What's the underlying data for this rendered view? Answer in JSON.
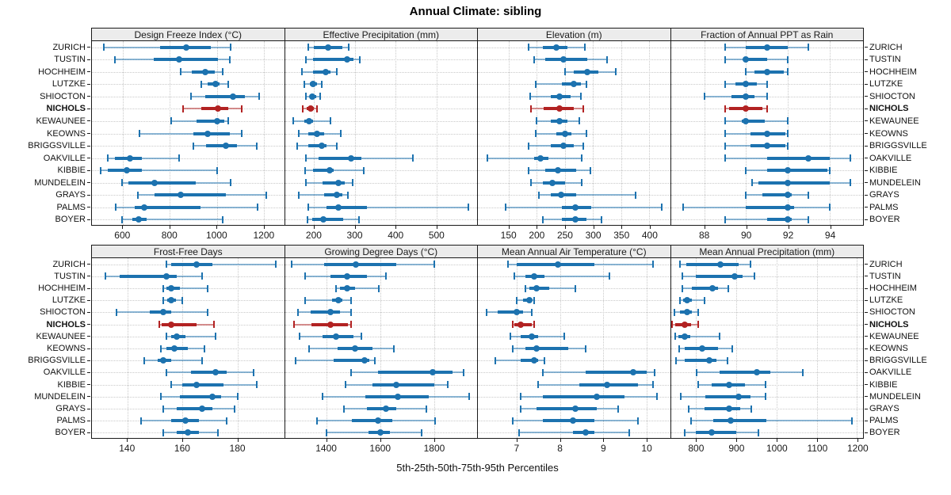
{
  "title": "Annual Climate: sibling",
  "footer": "5th-25th-50th-75th-95th Percentiles",
  "stations": [
    "ZURICH",
    "TUSTIN",
    "HOCHHEIM",
    "LUTZKE",
    "SHIOCTON",
    "NICHOLS",
    "KEWAUNEE",
    "KEOWNS",
    "BRIGGSVILLE",
    "OAKVILLE",
    "KIBBIE",
    "MUNDELEIN",
    "GRAYS",
    "PALMS",
    "BOYER"
  ],
  "highlight_station": "NICHOLS",
  "colors": {
    "normal": "#1c72af",
    "highlight": "#b22222",
    "grid": "#c9c9c9",
    "frame": "#1a1a1a",
    "strip_bg": "#ececec"
  },
  "chart_data": {
    "type": "dotplot-trellis",
    "percentile_levels": [
      5,
      25,
      50,
      75,
      95
    ],
    "note": "values are [p5,p25,p50,p75,p95] per station, station order as in stations[]",
    "panels": [
      {
        "row": 0,
        "title": "Design Freeze Index (°C)",
        "xlim": [
          468,
          1287
        ],
        "ticks": [
          600,
          800,
          1000,
          1200
        ],
        "values": [
          [
            520,
            760,
            870,
            975,
            1060
          ],
          [
            565,
            730,
            840,
            1005,
            1055
          ],
          [
            845,
            895,
            950,
            990,
            1025
          ],
          [
            935,
            960,
            995,
            1012,
            1048
          ],
          [
            890,
            950,
            1070,
            1120,
            1180
          ],
          [
            855,
            935,
            1005,
            1050,
            1105
          ],
          [
            805,
            915,
            1000,
            1032,
            1048
          ],
          [
            670,
            900,
            960,
            1055,
            1105
          ],
          [
            900,
            955,
            1040,
            1085,
            1170
          ],
          [
            535,
            565,
            630,
            680,
            840
          ],
          [
            505,
            535,
            615,
            680,
            1000
          ],
          [
            595,
            625,
            735,
            910,
            1060
          ],
          [
            665,
            735,
            845,
            1040,
            1210
          ],
          [
            570,
            650,
            690,
            930,
            1175
          ],
          [
            595,
            640,
            668,
            700,
            1025
          ]
        ]
      },
      {
        "row": 0,
        "title": "Effective Precipitation (mm)",
        "xlim": [
          128,
          600
        ],
        "ticks": [
          200,
          300,
          400,
          500
        ],
        "values": [
          [
            185,
            200,
            235,
            270,
            285
          ],
          [
            180,
            198,
            280,
            297,
            312
          ],
          [
            170,
            198,
            228,
            240,
            256
          ],
          [
            175,
            190,
            197,
            207,
            218
          ],
          [
            180,
            190,
            196,
            205,
            215
          ],
          [
            172,
            182,
            192,
            200,
            207
          ],
          [
            148,
            175,
            188,
            197,
            240
          ],
          [
            162,
            185,
            207,
            225,
            265
          ],
          [
            158,
            185,
            218,
            230,
            255
          ],
          [
            180,
            210,
            290,
            315,
            443
          ],
          [
            178,
            197,
            237,
            247,
            322
          ],
          [
            180,
            220,
            260,
            275,
            295
          ],
          [
            162,
            225,
            255,
            270,
            283
          ],
          [
            185,
            230,
            260,
            330,
            578
          ],
          [
            183,
            196,
            222,
            272,
            310
          ]
        ]
      },
      {
        "row": 0,
        "title": "Elevation (m)",
        "xlim": [
          95,
          437
        ],
        "ticks": [
          150,
          200,
          250,
          300,
          350,
          400
        ],
        "values": [
          [
            185,
            210,
            235,
            255,
            285
          ],
          [
            195,
            215,
            248,
            290,
            325
          ],
          [
            250,
            265,
            290,
            310,
            340
          ],
          [
            198,
            245,
            265,
            278,
            288
          ],
          [
            188,
            225,
            240,
            260,
            278
          ],
          [
            190,
            212,
            240,
            265,
            282
          ],
          [
            200,
            225,
            240,
            255,
            275
          ],
          [
            198,
            235,
            250,
            262,
            288
          ],
          [
            185,
            225,
            248,
            265,
            283
          ],
          [
            112,
            195,
            207,
            220,
            280
          ],
          [
            185,
            215,
            237,
            270,
            295
          ],
          [
            190,
            210,
            227,
            250,
            280
          ],
          [
            203,
            225,
            243,
            270,
            375
          ],
          [
            145,
            245,
            268,
            297,
            422
          ],
          [
            210,
            245,
            268,
            288,
            315
          ]
        ]
      },
      {
        "row": 0,
        "title": "Fraction of Annual PPT as Rain",
        "xlim": [
          86.4,
          95.6
        ],
        "ticks": [
          88,
          90,
          92,
          94
        ],
        "values": [
          [
            89,
            90,
            91,
            92,
            93
          ],
          [
            89,
            89.9,
            90,
            91,
            92
          ],
          [
            90,
            90.4,
            91,
            91.8,
            92
          ],
          [
            89,
            89.5,
            90,
            90.5,
            91
          ],
          [
            88,
            89.3,
            90,
            90.4,
            91
          ],
          [
            89,
            89.2,
            90,
            90.8,
            91
          ],
          [
            89,
            89.8,
            90,
            90.9,
            92
          ],
          [
            89,
            90.2,
            91,
            91.9,
            92
          ],
          [
            89,
            90.2,
            91,
            91.9,
            92
          ],
          [
            89,
            91,
            93,
            94,
            95
          ],
          [
            90,
            91,
            92,
            93.9,
            94
          ],
          [
            90.3,
            90.6,
            92,
            94,
            95
          ],
          [
            90,
            90.8,
            92,
            92.2,
            93
          ],
          [
            87,
            90,
            92,
            92.3,
            94
          ],
          [
            89,
            91,
            92,
            92.2,
            93
          ]
        ]
      },
      {
        "row": 1,
        "title": "Frost-Free Days",
        "xlim": [
          127,
          197
        ],
        "ticks": [
          140,
          160,
          180
        ],
        "values": [
          [
            154,
            156,
            165,
            171,
            194
          ],
          [
            132,
            137,
            154,
            158,
            167
          ],
          [
            153,
            154,
            156,
            159,
            169
          ],
          [
            153,
            154.5,
            156,
            157.5,
            160
          ],
          [
            136,
            148,
            153,
            156,
            169
          ],
          [
            151.5,
            152.5,
            156,
            165,
            171.5
          ],
          [
            154,
            156,
            158,
            161,
            172
          ],
          [
            152,
            154,
            157,
            162,
            168
          ],
          [
            146,
            151,
            153,
            156,
            167
          ],
          [
            154,
            163,
            172,
            176,
            186
          ],
          [
            156,
            160,
            165,
            175,
            187
          ],
          [
            152,
            159,
            171,
            174,
            180
          ],
          [
            153,
            158,
            167,
            171,
            179
          ],
          [
            145,
            156,
            161,
            166,
            176
          ],
          [
            153,
            158,
            162,
            166,
            173
          ]
        ]
      },
      {
        "row": 1,
        "title": "Growing Degree Days (°C)",
        "xlim": [
          1245,
          1960
        ],
        "ticks": [
          1400,
          1600,
          1800
        ],
        "values": [
          [
            1270,
            1390,
            1510,
            1660,
            1800
          ],
          [
            1320,
            1415,
            1475,
            1550,
            1620
          ],
          [
            1435,
            1450,
            1475,
            1505,
            1595
          ],
          [
            1320,
            1420,
            1445,
            1460,
            1490
          ],
          [
            1295,
            1340,
            1415,
            1450,
            1490
          ],
          [
            1280,
            1345,
            1415,
            1478,
            1492
          ],
          [
            1300,
            1385,
            1435,
            1500,
            1530
          ],
          [
            1335,
            1440,
            1505,
            1570,
            1650
          ],
          [
            1285,
            1425,
            1540,
            1560,
            1580
          ],
          [
            1490,
            1590,
            1795,
            1870,
            1910
          ],
          [
            1470,
            1570,
            1660,
            1800,
            1850
          ],
          [
            1385,
            1545,
            1665,
            1780,
            1930
          ],
          [
            1465,
            1550,
            1620,
            1660,
            1770
          ],
          [
            1365,
            1495,
            1590,
            1645,
            1805
          ],
          [
            1400,
            1555,
            1600,
            1635,
            1755
          ]
        ]
      },
      {
        "row": 1,
        "title": "Mean Annual Air Temperature (°C)",
        "xlim": [
          6.1,
          10.55
        ],
        "ticks": [
          7,
          8,
          9,
          10
        ],
        "values": [
          [
            6.8,
            7.0,
            7.95,
            8.8,
            10.15
          ],
          [
            6.95,
            7.2,
            7.4,
            7.65,
            9.15
          ],
          [
            7.2,
            7.3,
            7.45,
            7.75,
            8.35
          ],
          [
            7.0,
            7.15,
            7.3,
            7.35,
            7.4
          ],
          [
            6.3,
            6.55,
            7.0,
            7.15,
            7.35
          ],
          [
            6.9,
            6.95,
            7.1,
            7.35,
            7.4
          ],
          [
            6.85,
            7.1,
            7.35,
            7.5,
            8.1
          ],
          [
            6.9,
            7.2,
            7.45,
            8.2,
            8.6
          ],
          [
            6.5,
            7.1,
            7.4,
            7.5,
            7.65
          ],
          [
            7.6,
            8.6,
            9.7,
            10.0,
            10.2
          ],
          [
            7.5,
            8.45,
            9.1,
            9.8,
            10.15
          ],
          [
            7.1,
            7.6,
            8.85,
            9.5,
            10.25
          ],
          [
            7.1,
            7.45,
            8.35,
            8.85,
            9.35
          ],
          [
            6.9,
            7.6,
            8.3,
            8.8,
            9.8
          ],
          [
            7.05,
            8.3,
            8.6,
            8.8,
            9.6
          ]
        ]
      },
      {
        "row": 1,
        "title": "Mean Annual Precipitation (mm)",
        "xlim": [
          737,
          1215
        ],
        "ticks": [
          800,
          900,
          1000,
          1100,
          1200
        ],
        "values": [
          [
            760,
            775,
            860,
            905,
            935
          ],
          [
            765,
            800,
            895,
            915,
            945
          ],
          [
            765,
            790,
            840,
            855,
            880
          ],
          [
            760,
            768,
            778,
            790,
            820
          ],
          [
            745,
            760,
            778,
            790,
            805
          ],
          [
            740,
            748,
            772,
            788,
            805
          ],
          [
            748,
            755,
            772,
            785,
            858
          ],
          [
            758,
            772,
            815,
            855,
            890
          ],
          [
            750,
            772,
            832,
            850,
            878
          ],
          [
            802,
            858,
            950,
            985,
            1065
          ],
          [
            805,
            838,
            882,
            922,
            972
          ],
          [
            762,
            822,
            905,
            935,
            972
          ],
          [
            782,
            820,
            882,
            910,
            938
          ],
          [
            788,
            842,
            885,
            975,
            1188
          ],
          [
            772,
            800,
            838,
            900,
            955
          ]
        ]
      }
    ]
  }
}
